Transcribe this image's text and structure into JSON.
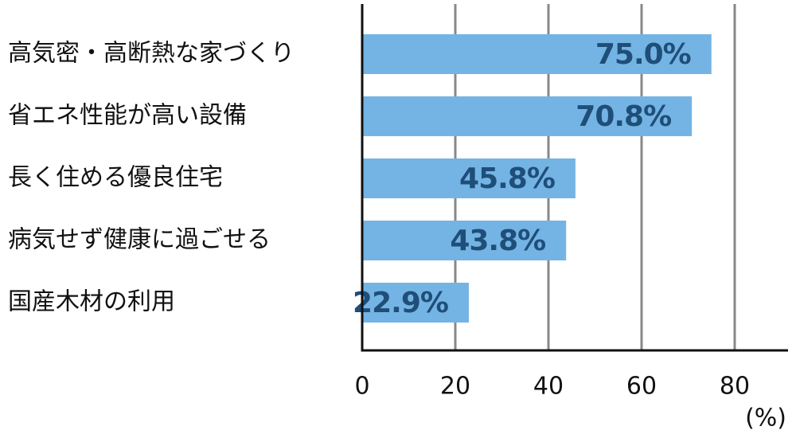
{
  "chart_data": {
    "type": "hbar",
    "categories": [
      "高気密・高断熱な家づくり",
      "省エネ性能が高い設備",
      "長く住める優良住宅",
      "病気せず健康に過ごせる",
      "国産木材の利用"
    ],
    "values": [
      75.0,
      70.8,
      45.8,
      43.8,
      22.9
    ],
    "value_labels": [
      "75.0%",
      "70.8%",
      "45.8%",
      "43.8%",
      "22.9%"
    ],
    "color": "#74b4e4",
    "label_color": "#1f4e79",
    "xlabel": "(%)",
    "xlim": [
      0,
      90
    ],
    "xticks": [
      0,
      20,
      40,
      60,
      80
    ],
    "grid": true
  }
}
